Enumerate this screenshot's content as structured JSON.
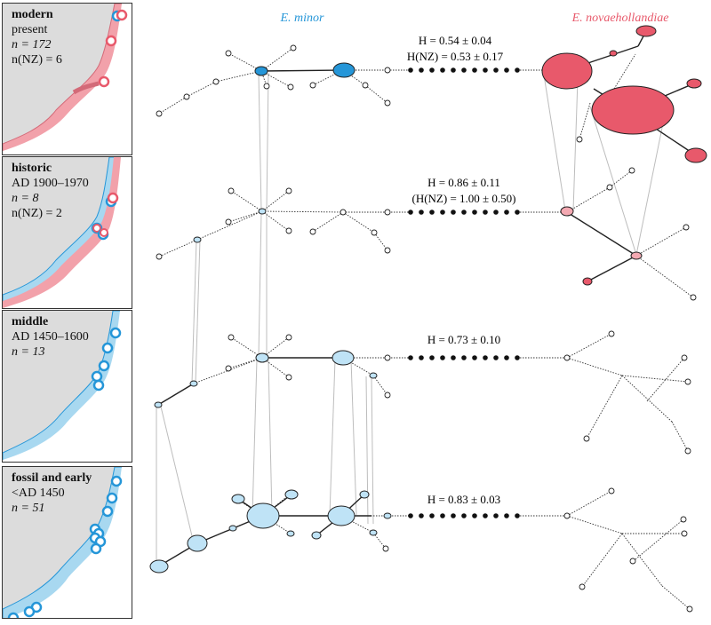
{
  "columns": {
    "minor": "E. minor",
    "novae": "E. novaehollandiae"
  },
  "colors": {
    "minor_dark": "#2596d8",
    "minor_light": "#bfe3f6",
    "novae_dark": "#e8596b",
    "novae_light": "#f4a9b2",
    "land": "#dcdcdc"
  },
  "panels": [
    {
      "title": "modern",
      "lines": [
        "present",
        "n = 172",
        "n(NZ) = 6"
      ]
    },
    {
      "title": "historic",
      "lines": [
        "AD 1900–1970",
        "n = 8",
        "n(NZ) = 2"
      ]
    },
    {
      "title": "middle",
      "lines": [
        "AD 1450–1600",
        "n = 13"
      ]
    },
    {
      "title": "fossil and early",
      "lines": [
        "<AD 1450",
        "n = 51"
      ]
    }
  ],
  "stats": [
    {
      "line1": "H = 0.54 ± 0.04",
      "line2": "H(NZ) = 0.53 ± 0.17"
    },
    {
      "line1": "H = 0.86 ± 0.11",
      "line2": "(H(NZ) = 1.00 ± 0.50)"
    },
    {
      "line1": "H = 0.73 ± 0.10",
      "line2": ""
    },
    {
      "line1": "H = 0.83 ± 0.03",
      "line2": ""
    }
  ]
}
